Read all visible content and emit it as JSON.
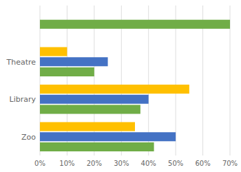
{
  "chart_data": {
    "type": "bar",
    "orientation": "horizontal",
    "categories": [
      null,
      "Theatre",
      "Library",
      "Zoo"
    ],
    "series": [
      {
        "color": "#FFC000",
        "values": [
          null,
          10,
          55,
          35
        ]
      },
      {
        "color": "#4472C4",
        "values": [
          null,
          25,
          40,
          50
        ]
      },
      {
        "color": "#70AD47",
        "values": [
          null,
          20,
          37,
          42
        ]
      },
      {
        "color": "#70AD47",
        "values": [
          70,
          null,
          null,
          null
        ]
      }
    ],
    "xlim": [
      0,
      70
    ],
    "xticks": [
      {
        "value": 0,
        "label": "0%"
      },
      {
        "value": 10,
        "label": "10%"
      },
      {
        "value": 20,
        "label": "20%"
      },
      {
        "value": 30,
        "label": "30%"
      },
      {
        "value": 40,
        "label": "40%"
      },
      {
        "value": 50,
        "label": "50%"
      },
      {
        "value": 60,
        "label": "60%"
      },
      {
        "value": 70,
        "label": "70%"
      }
    ],
    "grid": true
  }
}
